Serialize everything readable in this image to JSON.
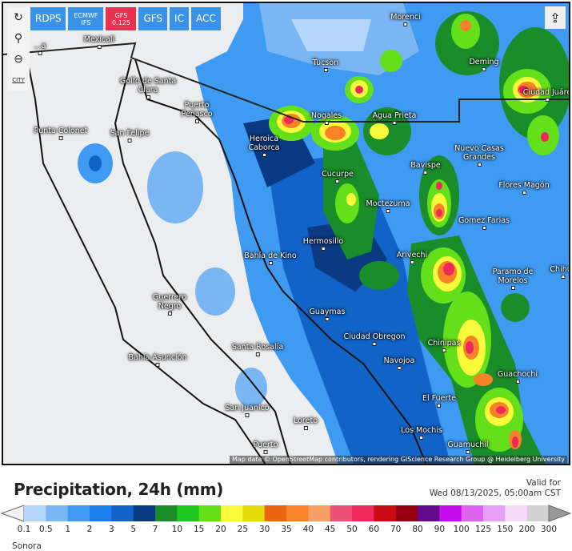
{
  "map": {
    "toolbar": [
      {
        "label": "RDPS"
      },
      {
        "label": "ECMWF IFS"
      },
      {
        "label": "GFS 0.125",
        "active": true
      },
      {
        "label": "GFS"
      },
      {
        "label": "IC"
      },
      {
        "label": "ACC"
      }
    ],
    "side_controls": [
      {
        "icon": "refresh-icon"
      },
      {
        "icon": "location-pin-icon"
      },
      {
        "icon": "zoom-out-icon"
      },
      {
        "icon": "city-toggle-icon",
        "label": "CITY"
      }
    ],
    "share_icon": "share-icon",
    "cities": [
      "...a",
      "Mexicali",
      "Tucson",
      "Morenci",
      "Deming",
      "Ciudad Juáre",
      "Nogales",
      "Agua Prieta",
      "Heroica Caborca",
      "Cucurpe",
      "Bavispe",
      "Nuevo Casas Grandes",
      "Flores Magón",
      "Moctezuma",
      "Gomez Farias",
      "Hermosillo",
      "Bahía de Kino",
      "Arivechi",
      "Paramo de Morelos",
      "Chihua",
      "Guaymas",
      "Ciudad Obregon",
      "Chinipas",
      "Navojoa",
      "Guachochi",
      "El Fuerte",
      "Los Mochis",
      "Guamuchil",
      "Loreto",
      "Santa Rosalía",
      "San Juanico",
      "Puerto",
      "Bahía Asunción",
      "Guerrero Negro",
      "Punta Colonet",
      "San Felipe",
      "Golfo de Santa Clara",
      "Puerto Peñasco"
    ],
    "attribution": "Map data © OpenStreetMap contributors, rendering GIScience Research Group @ Heidelberg University"
  },
  "legend": {
    "title": "Precipitation, 24h (mm)",
    "valid_label": "Valid for",
    "valid_time": "Wed 08/13/2025, 05:00am CST",
    "labels": [
      "0.1",
      "0.5",
      "1",
      "2",
      "3",
      "5",
      "7",
      "10",
      "15",
      "20",
      "25",
      "30",
      "35",
      "40",
      "45",
      "50",
      "60",
      "70",
      "80",
      "90",
      "100",
      "125",
      "150",
      "200",
      "300"
    ],
    "colors": [
      "#b4d6fa",
      "#7ab6f3",
      "#3f9bf2",
      "#1a80ee",
      "#1263c8",
      "#0a3a82",
      "#1a8c2a",
      "#1ec81e",
      "#64e01a",
      "#fafa3c",
      "#e4dc0a",
      "#ea6414",
      "#f88228",
      "#f8a064",
      "#ee5078",
      "#ee285a",
      "#c80a14",
      "#960014",
      "#640a8c",
      "#c80af0",
      "#dc64f0",
      "#e6a0f5",
      "#f5dcf8",
      "#d2d2d2"
    ],
    "under_color": "#f2f2f2",
    "over_color": "#999999",
    "region": "Sonora"
  }
}
